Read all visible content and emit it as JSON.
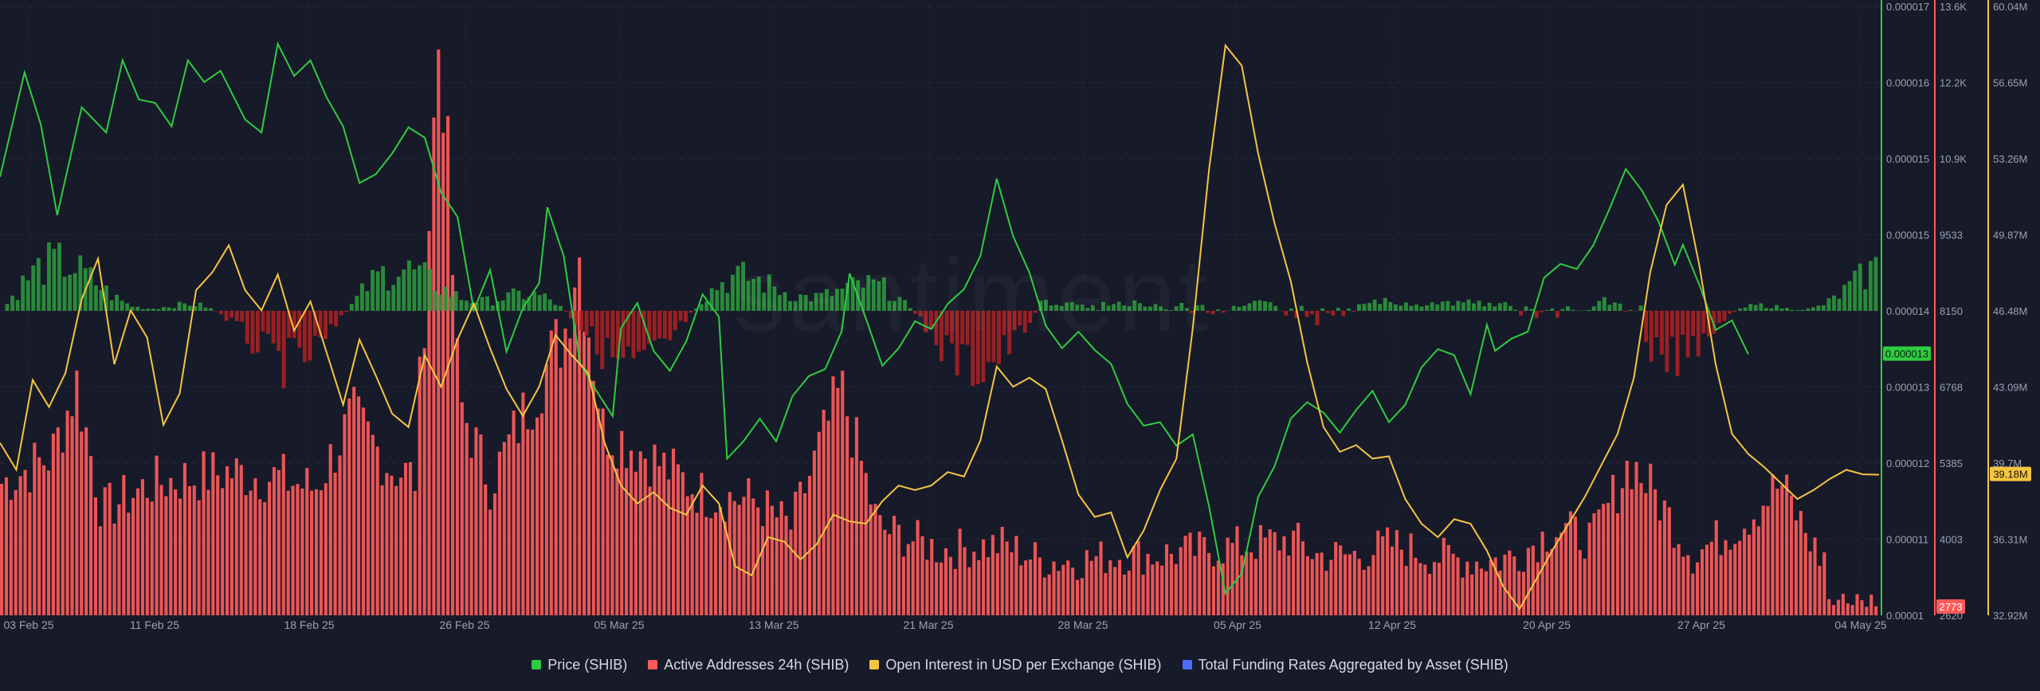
{
  "watermark": "santiment",
  "chart_data": {
    "type": "line",
    "x_ticks": [
      "03 Feb 25",
      "11 Feb 25",
      "18 Feb 25",
      "26 Feb 25",
      "05 Mar 25",
      "13 Mar 25",
      "21 Mar 25",
      "28 Mar 25",
      "05 Apr 25",
      "12 Apr 25",
      "20 Apr 25",
      "27 Apr 25",
      "04 May 25"
    ],
    "x_range": [
      "2025-02-02",
      "2025-05-04"
    ],
    "axes": {
      "price": {
        "ticks": [
          "0.000017",
          "0.000016",
          "0.000015",
          "0.000015",
          "0.000014",
          "0.000013",
          "0.000012",
          "0.000011",
          "0.00001"
        ],
        "range": [
          1e-05,
          1.7e-05
        ],
        "current": "0.000013",
        "color": "#2ecc40"
      },
      "active_addresses": {
        "ticks": [
          "13.6K",
          "12.2K",
          "10.9K",
          "9533",
          "8150",
          "6768",
          "5385",
          "4003",
          "2620"
        ],
        "range": [
          2620,
          13600
        ],
        "current": "2773",
        "color": "#ff5a5a"
      },
      "open_interest": {
        "ticks": [
          "60.04M",
          "56.65M",
          "53.26M",
          "49.87M",
          "46.48M",
          "43.09M",
          "39.7M",
          "36.31M",
          "32.92M"
        ],
        "range": [
          32.92,
          60.04
        ],
        "current": "39.18M",
        "color": "#f5c542"
      }
    },
    "series": [
      {
        "name": "Price (SHIB)",
        "color": "#2ecc40",
        "points": [
          [
            0,
            1.504e-05
          ],
          [
            3,
            1.624e-05
          ],
          [
            5,
            1.564e-05
          ],
          [
            7,
            1.46e-05
          ],
          [
            10,
            1.584e-05
          ],
          [
            13,
            1.555e-05
          ],
          [
            15,
            1.638e-05
          ],
          [
            17,
            1.593e-05
          ],
          [
            19,
            1.589e-05
          ],
          [
            21,
            1.562e-05
          ],
          [
            23,
            1.638e-05
          ],
          [
            25,
            1.613e-05
          ],
          [
            27,
            1.626e-05
          ],
          [
            30,
            1.57e-05
          ],
          [
            32,
            1.555e-05
          ],
          [
            34,
            1.657e-05
          ],
          [
            36,
            1.62e-05
          ],
          [
            38,
            1.638e-05
          ],
          [
            40,
            1.595e-05
          ],
          [
            42,
            1.562e-05
          ],
          [
            44,
            1.497e-05
          ],
          [
            46,
            1.507e-05
          ],
          [
            48,
            1.531e-05
          ],
          [
            50,
            1.561e-05
          ],
          [
            52,
            1.549e-05
          ],
          [
            54,
            1.486e-05
          ],
          [
            56,
            1.458e-05
          ],
          [
            58,
            1.351e-05
          ],
          [
            60,
            1.397e-05
          ],
          [
            62,
            1.303e-05
          ],
          [
            64,
            1.353e-05
          ],
          [
            66,
            1.382e-05
          ],
          [
            67,
            1.469e-05
          ],
          [
            69,
            1.413e-05
          ],
          [
            71,
            1.29e-05
          ],
          [
            73,
            1.258e-05
          ],
          [
            75,
            1.229e-05
          ],
          [
            76,
            1.33e-05
          ],
          [
            78,
            1.359e-05
          ],
          [
            80,
            1.304e-05
          ],
          [
            82,
            1.281e-05
          ],
          [
            84,
            1.315e-05
          ],
          [
            86,
            1.369e-05
          ],
          [
            88,
            1.343e-05
          ],
          [
            89,
            1.18e-05
          ],
          [
            91,
            1.2e-05
          ],
          [
            93,
            1.226e-05
          ],
          [
            95,
            1.2e-05
          ],
          [
            97,
            1.252e-05
          ],
          [
            99,
            1.275e-05
          ],
          [
            101,
            1.283e-05
          ],
          [
            103,
            1.326e-05
          ],
          [
            104,
            1.393e-05
          ],
          [
            106,
            1.341e-05
          ],
          [
            108,
            1.287e-05
          ],
          [
            110,
            1.307e-05
          ],
          [
            112,
            1.338e-05
          ],
          [
            114,
            1.329e-05
          ],
          [
            116,
            1.358e-05
          ],
          [
            118,
            1.375e-05
          ],
          [
            120,
            1.413e-05
          ],
          [
            122,
            1.502e-05
          ],
          [
            124,
            1.436e-05
          ],
          [
            126,
            1.394e-05
          ],
          [
            128,
            1.333e-05
          ],
          [
            130,
            1.307e-05
          ],
          [
            132,
            1.326e-05
          ],
          [
            134,
            1.305e-05
          ],
          [
            136,
            1.289e-05
          ],
          [
            138,
            1.243e-05
          ],
          [
            140,
            1.218e-05
          ],
          [
            142,
            1.222e-05
          ],
          [
            144,
            1.195e-05
          ],
          [
            146,
            1.208e-05
          ],
          [
            148,
            1.125e-05
          ],
          [
            150,
            1.025e-05
          ],
          [
            152,
            1.048e-05
          ],
          [
            154,
            1.136e-05
          ],
          [
            156,
            1.171e-05
          ],
          [
            158,
            1.226e-05
          ],
          [
            160,
            1.245e-05
          ],
          [
            162,
            1.233e-05
          ],
          [
            164,
            1.21e-05
          ],
          [
            166,
            1.236e-05
          ],
          [
            168,
            1.258e-05
          ],
          [
            170,
            1.222e-05
          ],
          [
            172,
            1.242e-05
          ],
          [
            174,
            1.285e-05
          ],
          [
            176,
            1.306e-05
          ],
          [
            178,
            1.299e-05
          ],
          [
            180,
            1.254e-05
          ],
          [
            182,
            1.334e-05
          ],
          [
            183,
            1.304e-05
          ],
          [
            185,
            1.318e-05
          ],
          [
            187,
            1.326e-05
          ],
          [
            189,
            1.388e-05
          ],
          [
            191,
            1.404e-05
          ],
          [
            193,
            1.398e-05
          ],
          [
            195,
            1.425e-05
          ],
          [
            197,
            1.467e-05
          ],
          [
            199,
            1.513e-05
          ],
          [
            201,
            1.488e-05
          ],
          [
            203,
            1.453e-05
          ],
          [
            205,
            1.403e-05
          ],
          [
            206,
            1.426e-05
          ],
          [
            208,
            1.38e-05
          ],
          [
            210,
            1.328e-05
          ],
          [
            212,
            1.339e-05
          ],
          [
            214,
            1.3e-05
          ]
        ]
      },
      {
        "name": "Active Addresses 24h (SHIB)",
        "color": "#ff5a5a"
      },
      {
        "name": "Open Interest in USD per Exchange (SHIB)",
        "color": "#f5c542",
        "points": [
          [
            0,
            40.6
          ],
          [
            2,
            39.4
          ],
          [
            4,
            43.4
          ],
          [
            6,
            42.2
          ],
          [
            8,
            43.7
          ],
          [
            10,
            47.0
          ],
          [
            12,
            48.8
          ],
          [
            14,
            44.1
          ],
          [
            16,
            46.5
          ],
          [
            18,
            45.3
          ],
          [
            20,
            41.4
          ],
          [
            22,
            42.8
          ],
          [
            24,
            47.4
          ],
          [
            26,
            48.2
          ],
          [
            28,
            49.4
          ],
          [
            30,
            47.4
          ],
          [
            32,
            46.5
          ],
          [
            34,
            48.1
          ],
          [
            36,
            45.6
          ],
          [
            38,
            46.9
          ],
          [
            40,
            44.6
          ],
          [
            42,
            42.3
          ],
          [
            44,
            45.2
          ],
          [
            46,
            43.6
          ],
          [
            48,
            41.9
          ],
          [
            50,
            41.3
          ],
          [
            52,
            44.5
          ],
          [
            54,
            43.1
          ],
          [
            56,
            45.2
          ],
          [
            58,
            46.8
          ],
          [
            60,
            44.8
          ],
          [
            62,
            43.0
          ],
          [
            64,
            41.8
          ],
          [
            66,
            43.1
          ],
          [
            68,
            45.4
          ],
          [
            70,
            44.5
          ],
          [
            72,
            43.7
          ],
          [
            74,
            40.6
          ],
          [
            76,
            38.7
          ],
          [
            78,
            37.9
          ],
          [
            80,
            38.4
          ],
          [
            82,
            37.7
          ],
          [
            84,
            37.4
          ],
          [
            86,
            38.7
          ],
          [
            88,
            37.9
          ],
          [
            90,
            35.1
          ],
          [
            92,
            34.7
          ],
          [
            94,
            36.4
          ],
          [
            96,
            36.2
          ],
          [
            98,
            35.4
          ],
          [
            100,
            36.1
          ],
          [
            102,
            37.4
          ],
          [
            104,
            37.1
          ],
          [
            106,
            37.0
          ],
          [
            108,
            38.0
          ],
          [
            110,
            38.7
          ],
          [
            112,
            38.5
          ],
          [
            114,
            38.7
          ],
          [
            116,
            39.3
          ],
          [
            118,
            39.1
          ],
          [
            120,
            40.7
          ],
          [
            122,
            44.0
          ],
          [
            124,
            43.1
          ],
          [
            126,
            43.5
          ],
          [
            128,
            43.0
          ],
          [
            130,
            40.7
          ],
          [
            132,
            38.3
          ],
          [
            134,
            37.3
          ],
          [
            136,
            37.5
          ],
          [
            138,
            35.5
          ],
          [
            140,
            36.7
          ],
          [
            142,
            38.5
          ],
          [
            144,
            39.9
          ],
          [
            146,
            45.7
          ],
          [
            148,
            52.8
          ],
          [
            150,
            58.3
          ],
          [
            152,
            57.4
          ],
          [
            154,
            53.5
          ],
          [
            156,
            50.4
          ],
          [
            158,
            47.8
          ],
          [
            160,
            44.2
          ],
          [
            162,
            41.3
          ],
          [
            164,
            40.2
          ],
          [
            166,
            40.5
          ],
          [
            168,
            39.9
          ],
          [
            170,
            40.0
          ],
          [
            172,
            38.1
          ],
          [
            174,
            37.0
          ],
          [
            176,
            36.4
          ],
          [
            178,
            37.2
          ],
          [
            180,
            37.0
          ],
          [
            182,
            35.8
          ],
          [
            184,
            34.2
          ],
          [
            186,
            33.2
          ],
          [
            188,
            34.5
          ],
          [
            190,
            35.8
          ],
          [
            192,
            37.0
          ],
          [
            194,
            38.2
          ],
          [
            196,
            39.6
          ],
          [
            198,
            41.0
          ],
          [
            200,
            43.5
          ],
          [
            202,
            48.2
          ],
          [
            204,
            51.2
          ],
          [
            206,
            52.1
          ],
          [
            208,
            48.5
          ],
          [
            210,
            44.1
          ],
          [
            212,
            41.0
          ],
          [
            214,
            40.1
          ],
          [
            216,
            39.5
          ],
          [
            218,
            38.8
          ],
          [
            220,
            38.1
          ],
          [
            222,
            38.5
          ],
          [
            224,
            39.0
          ],
          [
            226,
            39.4
          ],
          [
            228,
            39.2
          ],
          [
            230,
            39.18
          ]
        ]
      },
      {
        "name": "Total Funding Rates Aggregated by Asset (SHIB)",
        "color": "#4d6bfe"
      }
    ]
  },
  "legend": [
    {
      "label": "Price (SHIB)",
      "color": "#2ecc40"
    },
    {
      "label": "Active Addresses 24h (SHIB)",
      "color": "#ff5a5a"
    },
    {
      "label": "Open Interest in USD per Exchange (SHIB)",
      "color": "#f5c542"
    },
    {
      "label": "Total Funding Rates Aggregated by Asset (SHIB)",
      "color": "#4d6bfe"
    }
  ]
}
